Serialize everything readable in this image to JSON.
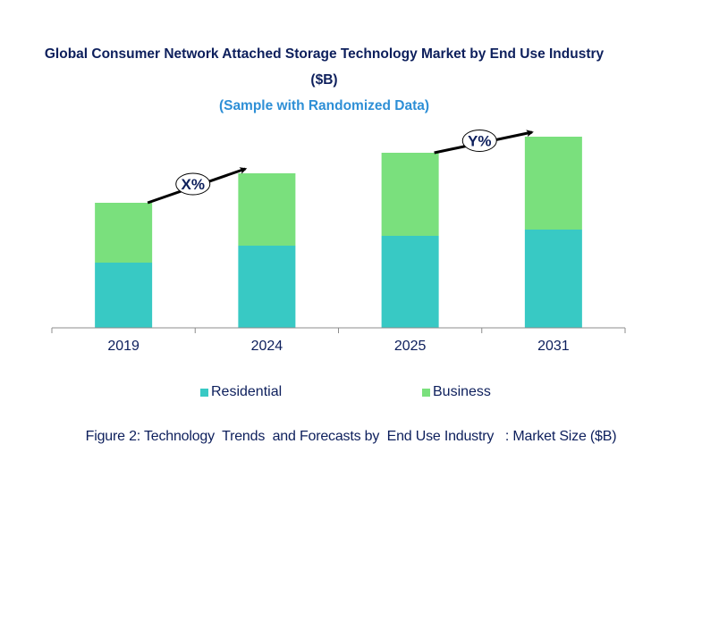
{
  "chart_data": {
    "type": "bar",
    "stacked": true,
    "title": "Global Consumer Network Attached Storage Technology Market by End Use Industry",
    "title_line2": "($B)",
    "subtitle": "(Sample with Randomized Data)",
    "categories": [
      "2019",
      "2024",
      "2025",
      "2031"
    ],
    "series": [
      {
        "name": "Residential",
        "color": "#38c9c4",
        "values": [
          7.3,
          9.2,
          10.3,
          11.0
        ]
      },
      {
        "name": "Business",
        "color": "#7ae07d",
        "values": [
          6.7,
          8.1,
          9.3,
          10.4
        ]
      }
    ],
    "ylim": [
      0,
      21.4
    ],
    "xlabel": "",
    "ylabel": "",
    "grid": false,
    "legend_position": "bottom",
    "annotations": [
      {
        "label": "X%",
        "from": "2019",
        "to": "2024"
      },
      {
        "label": "Y%",
        "from": "2025",
        "to": "2031"
      }
    ],
    "caption": "Figure 2: Technology  Trends  and Forecasts by  End Use Industry   : Market Size ($B)"
  }
}
